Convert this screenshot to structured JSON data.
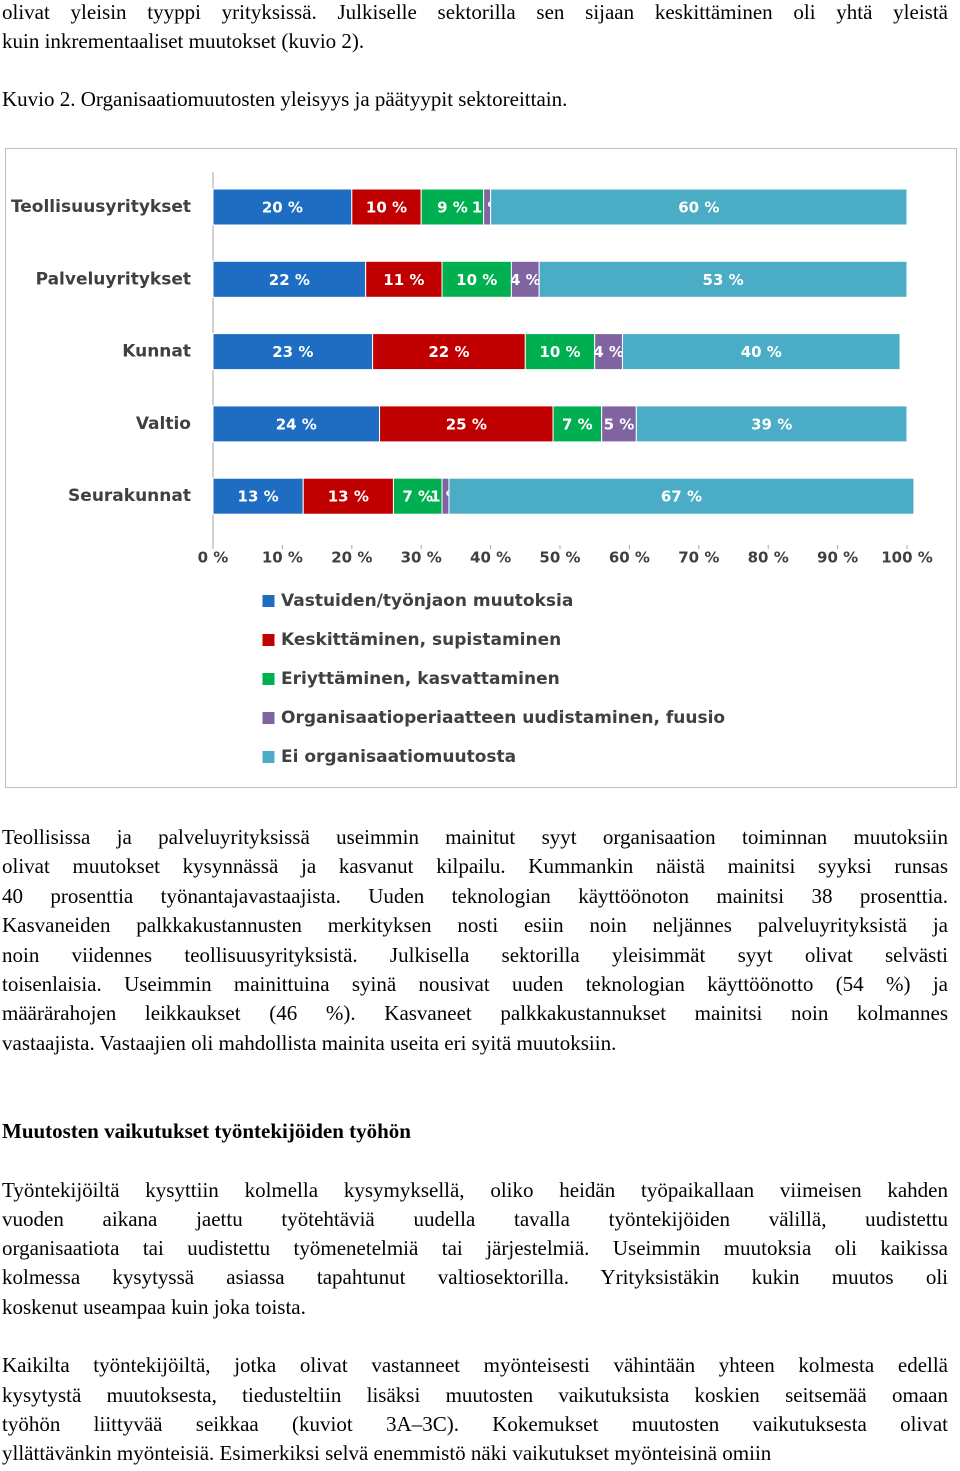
{
  "intro_lines": [
    "olivat yleisin tyyppi yrityksissä. Julkiselle sektorilla sen sijaan keskittäminen oli yhtä yleistä",
    "kuin inkrementaaliset muutokset (kuvio 2)."
  ],
  "figure_caption": "Kuvio 2. Organisaatiomuutosten yleisyys ja päätyypit sektoreittain.",
  "chart_data": {
    "type": "bar",
    "orientation": "horizontal",
    "stacked": true,
    "legend": "bottom",
    "categories": [
      "Teollisuusyritykset",
      "Palveluyritykset",
      "Kunnat",
      "Valtio",
      "Seurakunnat"
    ],
    "series": [
      {
        "name": "Vastuiden/työnjaon muutoksia",
        "color": "#1f6dc2",
        "values": [
          20,
          22,
          23,
          24,
          13
        ],
        "value_labels": [
          "20 %",
          "22 %",
          "23 %",
          "24 %",
          "13 %"
        ]
      },
      {
        "name": "Keskittäminen, supistaminen",
        "color": "#c00000",
        "values": [
          10,
          11,
          22,
          25,
          13
        ],
        "value_labels": [
          "10 %",
          "11 %",
          "22 %",
          "25 %",
          "13 %"
        ]
      },
      {
        "name": "Eriyttäminen, kasvattaminen",
        "color": "#00b050",
        "values": [
          9,
          10,
          10,
          7,
          7
        ],
        "value_labels": [
          "9 %",
          "10 %",
          "10 %",
          "7 %",
          "7 %"
        ]
      },
      {
        "name": "Organisaatioperiaatteen uudistaminen, fuusio",
        "color": "#8064a2",
        "values": [
          1,
          4,
          4,
          5,
          1
        ],
        "value_labels": [
          "1 %",
          "4 %",
          "4 %",
          "5 %",
          "1 %"
        ]
      },
      {
        "name": "Ei organisaatiomuutosta",
        "color": "#4bacc6",
        "values": [
          60,
          53,
          40,
          39,
          67
        ],
        "value_labels": [
          "60 %",
          "53 %",
          "40 %",
          "39 %",
          "67 %"
        ]
      }
    ],
    "xlim": [
      0,
      100
    ],
    "xticks": [
      {
        "value": 0,
        "label": "0 %"
      },
      {
        "value": 10,
        "label": "10 %"
      },
      {
        "value": 20,
        "label": "20 %"
      },
      {
        "value": 30,
        "label": "30 %"
      },
      {
        "value": 40,
        "label": "40 %"
      },
      {
        "value": 50,
        "label": "50 %"
      },
      {
        "value": 60,
        "label": "60 %"
      },
      {
        "value": 70,
        "label": "70 %"
      },
      {
        "value": 80,
        "label": "80 %"
      },
      {
        "value": 90,
        "label": "90 %"
      },
      {
        "value": 100,
        "label": "100 %"
      }
    ]
  },
  "body": {
    "paragraph_1": [
      "Teollisissa ja palveluyrityksissä useimmin mainitut syyt organisaation toiminnan muutoksiin",
      "olivat muutokset kysynnässä ja kasvanut kilpailu. Kummankin näistä mainitsi syyksi runsas",
      "40 prosenttia työnantajavastaajista. Uuden teknologian käyttöönoton mainitsi 38 prosenttia.",
      "Kasvaneiden palkkakustannusten merkityksen nosti esiin noin neljännes palveluyrityksistä ja",
      "noin viidennes teollisuusyrityksistä. Julkisella sektorilla yleisimmät syyt olivat selvästi",
      "toisenlaisia. Useimmin mainittuina syinä nousivat uuden teknologian käyttöönotto (54 %) ja",
      "määrärahojen leikkaukset (46 %). Kasvaneet palkkakustannukset mainitsi noin kolmannes",
      "vastaajista. Vastaajien oli mahdollista mainita useita eri syitä muutoksiin."
    ],
    "heading": "Muutosten vaikutukset työntekijöiden työhön",
    "paragraph_2": [
      "Työntekijöiltä kysyttiin kolmella kysymyksellä, oliko heidän työpaikallaan viimeisen kahden",
      "vuoden aikana jaettu työtehtäviä uudella tavalla työntekijöiden välillä, uudistettu",
      "organisaatiota tai uudistettu työmenetelmiä tai järjestelmiä. Useimmin muutoksia oli kaikissa",
      "kolmessa kysytyssä asiassa tapahtunut valtiosektorilla. Yrityksistäkin kukin muutos oli",
      "koskenut useampaa kuin joka toista."
    ],
    "paragraph_3": [
      "Kaikilta työntekijöiltä, jotka olivat vastanneet myönteisesti vähintään yhteen kolmesta edellä",
      "kysytystä muutoksesta, tiedusteltiin lisäksi muutosten vaikutuksista koskien seitsemää omaan",
      "työhön liittyvää seikkaa (kuviot 3A–3C). Kokemukset muutosten vaikutuksesta olivat",
      "yllättävänkin myönteisiä. Esimerkiksi selvä enemmistö näki vaikutukset myönteisinä omiin"
    ]
  }
}
